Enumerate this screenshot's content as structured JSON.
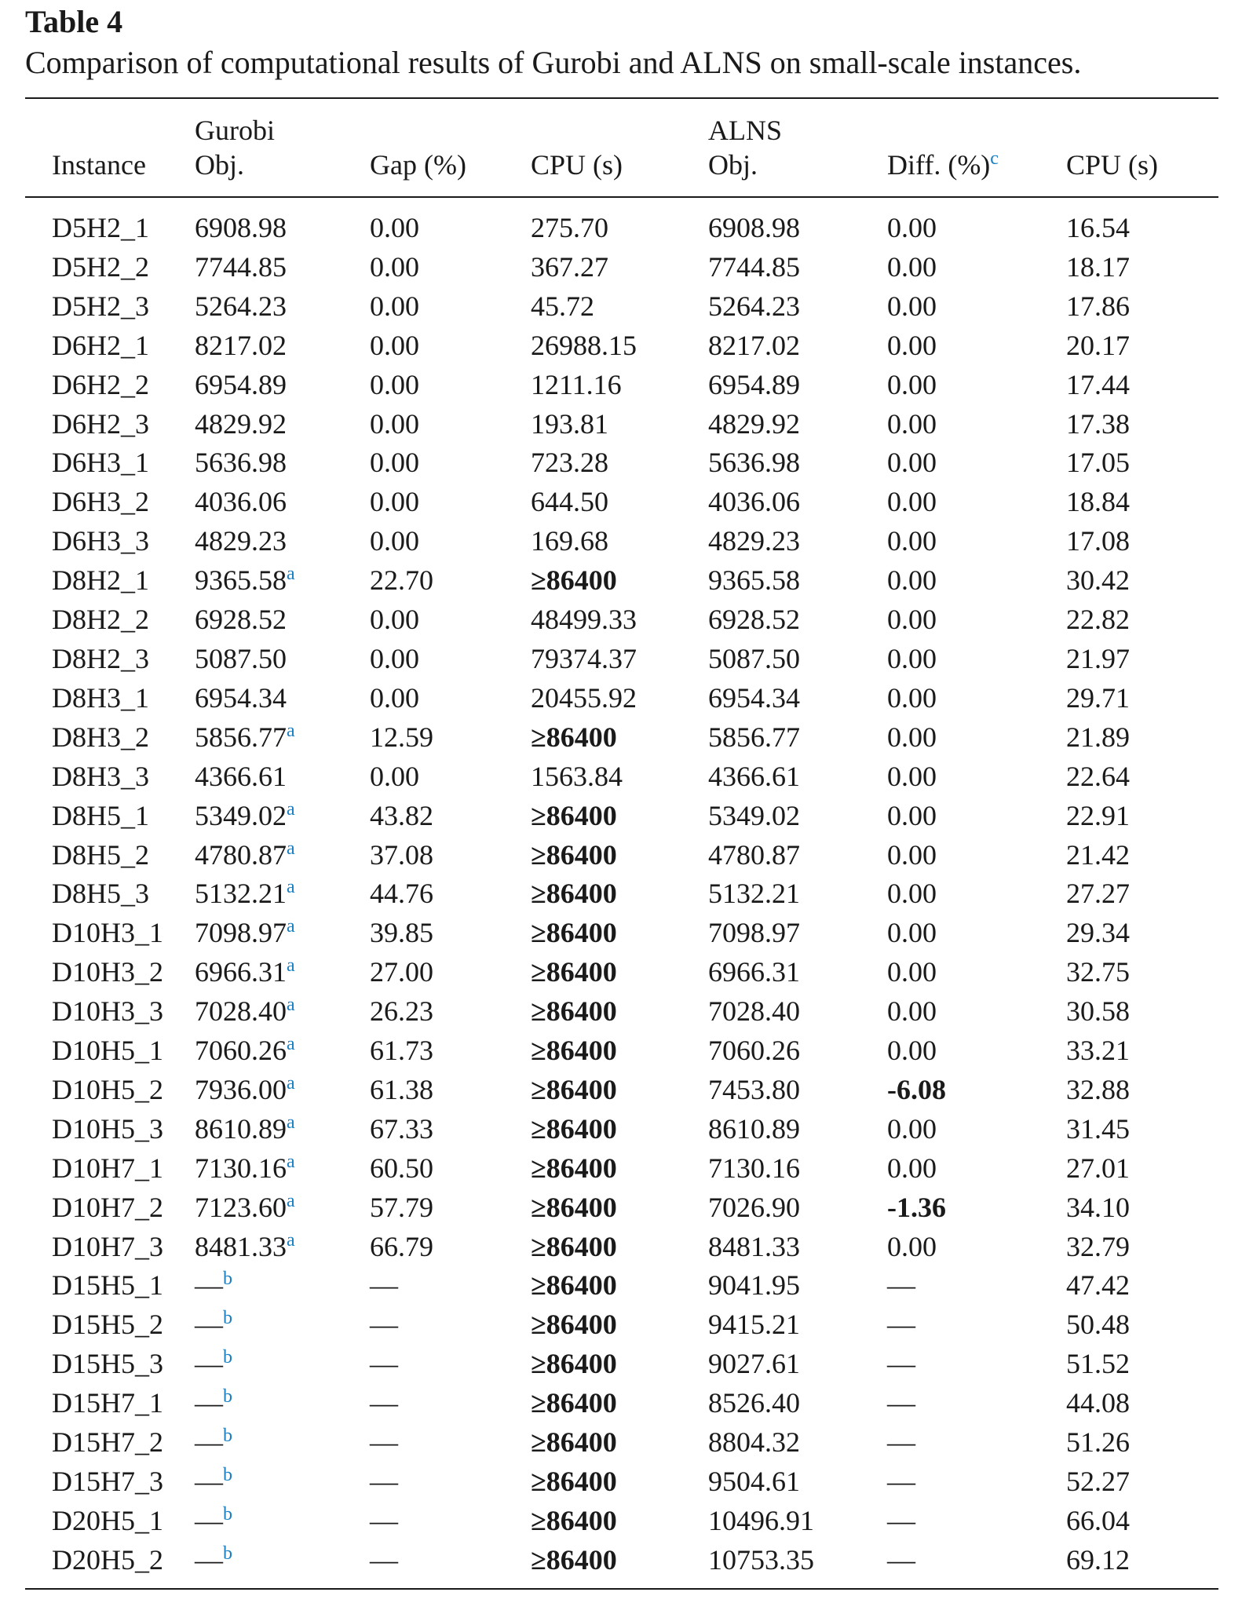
{
  "caption": {
    "label": "Table 4",
    "text": "Comparison of computational results of Gurobi and ALNS on small-scale instances."
  },
  "header": {
    "group_gurobi": "Gurobi",
    "group_alns": "ALNS",
    "col_instance": "Instance",
    "col_gurobi_obj": "Obj.",
    "col_gap": "Gap (%)",
    "col_gurobi_cpu": "CPU (s)",
    "col_alns_obj": "Obj.",
    "col_diff": "Diff. (%)",
    "col_diff_note": "c",
    "col_alns_cpu": "CPU (s)"
  },
  "rows": [
    {
      "instance": "D5H2_1",
      "gurobi_obj": "6908.98",
      "note": "",
      "gap": "0.00",
      "gurobi_cpu": "275.70",
      "cpu_bold": false,
      "alns_obj": "6908.98",
      "diff": "0.00",
      "diff_bold": false,
      "alns_cpu": "16.54"
    },
    {
      "instance": "D5H2_2",
      "gurobi_obj": "7744.85",
      "note": "",
      "gap": "0.00",
      "gurobi_cpu": "367.27",
      "cpu_bold": false,
      "alns_obj": "7744.85",
      "diff": "0.00",
      "diff_bold": false,
      "alns_cpu": "18.17"
    },
    {
      "instance": "D5H2_3",
      "gurobi_obj": "5264.23",
      "note": "",
      "gap": "0.00",
      "gurobi_cpu": "45.72",
      "cpu_bold": false,
      "alns_obj": "5264.23",
      "diff": "0.00",
      "diff_bold": false,
      "alns_cpu": "17.86"
    },
    {
      "instance": "D6H2_1",
      "gurobi_obj": "8217.02",
      "note": "",
      "gap": "0.00",
      "gurobi_cpu": "26988.15",
      "cpu_bold": false,
      "alns_obj": "8217.02",
      "diff": "0.00",
      "diff_bold": false,
      "alns_cpu": "20.17"
    },
    {
      "instance": "D6H2_2",
      "gurobi_obj": "6954.89",
      "note": "",
      "gap": "0.00",
      "gurobi_cpu": "1211.16",
      "cpu_bold": false,
      "alns_obj": "6954.89",
      "diff": "0.00",
      "diff_bold": false,
      "alns_cpu": "17.44"
    },
    {
      "instance": "D6H2_3",
      "gurobi_obj": "4829.92",
      "note": "",
      "gap": "0.00",
      "gurobi_cpu": "193.81",
      "cpu_bold": false,
      "alns_obj": "4829.92",
      "diff": "0.00",
      "diff_bold": false,
      "alns_cpu": "17.38"
    },
    {
      "instance": "D6H3_1",
      "gurobi_obj": "5636.98",
      "note": "",
      "gap": "0.00",
      "gurobi_cpu": "723.28",
      "cpu_bold": false,
      "alns_obj": "5636.98",
      "diff": "0.00",
      "diff_bold": false,
      "alns_cpu": "17.05"
    },
    {
      "instance": "D6H3_2",
      "gurobi_obj": "4036.06",
      "note": "",
      "gap": "0.00",
      "gurobi_cpu": "644.50",
      "cpu_bold": false,
      "alns_obj": "4036.06",
      "diff": "0.00",
      "diff_bold": false,
      "alns_cpu": "18.84"
    },
    {
      "instance": "D6H3_3",
      "gurobi_obj": "4829.23",
      "note": "",
      "gap": "0.00",
      "gurobi_cpu": "169.68",
      "cpu_bold": false,
      "alns_obj": "4829.23",
      "diff": "0.00",
      "diff_bold": false,
      "alns_cpu": "17.08"
    },
    {
      "instance": "D8H2_1",
      "gurobi_obj": "9365.58",
      "note": "a",
      "gap": "22.70",
      "gurobi_cpu": "≥86400",
      "cpu_bold": true,
      "alns_obj": "9365.58",
      "diff": "0.00",
      "diff_bold": false,
      "alns_cpu": "30.42"
    },
    {
      "instance": "D8H2_2",
      "gurobi_obj": "6928.52",
      "note": "",
      "gap": "0.00",
      "gurobi_cpu": "48499.33",
      "cpu_bold": false,
      "alns_obj": "6928.52",
      "diff": "0.00",
      "diff_bold": false,
      "alns_cpu": "22.82"
    },
    {
      "instance": "D8H2_3",
      "gurobi_obj": "5087.50",
      "note": "",
      "gap": "0.00",
      "gurobi_cpu": "79374.37",
      "cpu_bold": false,
      "alns_obj": "5087.50",
      "diff": "0.00",
      "diff_bold": false,
      "alns_cpu": "21.97"
    },
    {
      "instance": "D8H3_1",
      "gurobi_obj": "6954.34",
      "note": "",
      "gap": "0.00",
      "gurobi_cpu": "20455.92",
      "cpu_bold": false,
      "alns_obj": "6954.34",
      "diff": "0.00",
      "diff_bold": false,
      "alns_cpu": "29.71"
    },
    {
      "instance": "D8H3_2",
      "gurobi_obj": "5856.77",
      "note": "a",
      "gap": "12.59",
      "gurobi_cpu": "≥86400",
      "cpu_bold": true,
      "alns_obj": "5856.77",
      "diff": "0.00",
      "diff_bold": false,
      "alns_cpu": "21.89"
    },
    {
      "instance": "D8H3_3",
      "gurobi_obj": "4366.61",
      "note": "",
      "gap": "0.00",
      "gurobi_cpu": "1563.84",
      "cpu_bold": false,
      "alns_obj": "4366.61",
      "diff": "0.00",
      "diff_bold": false,
      "alns_cpu": "22.64"
    },
    {
      "instance": "D8H5_1",
      "gurobi_obj": "5349.02",
      "note": "a",
      "gap": "43.82",
      "gurobi_cpu": "≥86400",
      "cpu_bold": true,
      "alns_obj": "5349.02",
      "diff": "0.00",
      "diff_bold": false,
      "alns_cpu": "22.91"
    },
    {
      "instance": "D8H5_2",
      "gurobi_obj": "4780.87",
      "note": "a",
      "gap": "37.08",
      "gurobi_cpu": "≥86400",
      "cpu_bold": true,
      "alns_obj": "4780.87",
      "diff": "0.00",
      "diff_bold": false,
      "alns_cpu": "21.42"
    },
    {
      "instance": "D8H5_3",
      "gurobi_obj": "5132.21",
      "note": "a",
      "gap": "44.76",
      "gurobi_cpu": "≥86400",
      "cpu_bold": true,
      "alns_obj": "5132.21",
      "diff": "0.00",
      "diff_bold": false,
      "alns_cpu": "27.27"
    },
    {
      "instance": "D10H3_1",
      "gurobi_obj": "7098.97",
      "note": "a",
      "gap": "39.85",
      "gurobi_cpu": "≥86400",
      "cpu_bold": true,
      "alns_obj": "7098.97",
      "diff": "0.00",
      "diff_bold": false,
      "alns_cpu": "29.34"
    },
    {
      "instance": "D10H3_2",
      "gurobi_obj": "6966.31",
      "note": "a",
      "gap": "27.00",
      "gurobi_cpu": "≥86400",
      "cpu_bold": true,
      "alns_obj": "6966.31",
      "diff": "0.00",
      "diff_bold": false,
      "alns_cpu": "32.75"
    },
    {
      "instance": "D10H3_3",
      "gurobi_obj": "7028.40",
      "note": "a",
      "gap": "26.23",
      "gurobi_cpu": "≥86400",
      "cpu_bold": true,
      "alns_obj": "7028.40",
      "diff": "0.00",
      "diff_bold": false,
      "alns_cpu": "30.58"
    },
    {
      "instance": "D10H5_1",
      "gurobi_obj": "7060.26",
      "note": "a",
      "gap": "61.73",
      "gurobi_cpu": "≥86400",
      "cpu_bold": true,
      "alns_obj": "7060.26",
      "diff": "0.00",
      "diff_bold": false,
      "alns_cpu": "33.21"
    },
    {
      "instance": "D10H5_2",
      "gurobi_obj": "7936.00",
      "note": "a",
      "gap": "61.38",
      "gurobi_cpu": "≥86400",
      "cpu_bold": true,
      "alns_obj": "7453.80",
      "diff": "-6.08",
      "diff_bold": true,
      "alns_cpu": "32.88"
    },
    {
      "instance": "D10H5_3",
      "gurobi_obj": "8610.89",
      "note": "a",
      "gap": "67.33",
      "gurobi_cpu": "≥86400",
      "cpu_bold": true,
      "alns_obj": "8610.89",
      "diff": "0.00",
      "diff_bold": false,
      "alns_cpu": "31.45"
    },
    {
      "instance": "D10H7_1",
      "gurobi_obj": "7130.16",
      "note": "a",
      "gap": "60.50",
      "gurobi_cpu": "≥86400",
      "cpu_bold": true,
      "alns_obj": "7130.16",
      "diff": "0.00",
      "diff_bold": false,
      "alns_cpu": "27.01"
    },
    {
      "instance": "D10H7_2",
      "gurobi_obj": "7123.60",
      "note": "a",
      "gap": "57.79",
      "gurobi_cpu": "≥86400",
      "cpu_bold": true,
      "alns_obj": "7026.90",
      "diff": "-1.36",
      "diff_bold": true,
      "alns_cpu": "34.10"
    },
    {
      "instance": "D10H7_3",
      "gurobi_obj": "8481.33",
      "note": "a",
      "gap": "66.79",
      "gurobi_cpu": "≥86400",
      "cpu_bold": true,
      "alns_obj": "8481.33",
      "diff": "0.00",
      "diff_bold": false,
      "alns_cpu": "32.79"
    },
    {
      "instance": "D15H5_1",
      "gurobi_obj": "—",
      "note": "b",
      "gap": "—",
      "gurobi_cpu": "≥86400",
      "cpu_bold": true,
      "alns_obj": "9041.95",
      "diff": "—",
      "diff_bold": false,
      "alns_cpu": "47.42"
    },
    {
      "instance": "D15H5_2",
      "gurobi_obj": "—",
      "note": "b",
      "gap": "—",
      "gurobi_cpu": "≥86400",
      "cpu_bold": true,
      "alns_obj": "9415.21",
      "diff": "—",
      "diff_bold": false,
      "alns_cpu": "50.48"
    },
    {
      "instance": "D15H5_3",
      "gurobi_obj": "—",
      "note": "b",
      "gap": "—",
      "gurobi_cpu": "≥86400",
      "cpu_bold": true,
      "alns_obj": "9027.61",
      "diff": "—",
      "diff_bold": false,
      "alns_cpu": "51.52"
    },
    {
      "instance": "D15H7_1",
      "gurobi_obj": "—",
      "note": "b",
      "gap": "—",
      "gurobi_cpu": "≥86400",
      "cpu_bold": true,
      "alns_obj": "8526.40",
      "diff": "—",
      "diff_bold": false,
      "alns_cpu": "44.08"
    },
    {
      "instance": "D15H7_2",
      "gurobi_obj": "—",
      "note": "b",
      "gap": "—",
      "gurobi_cpu": "≥86400",
      "cpu_bold": true,
      "alns_obj": "8804.32",
      "diff": "—",
      "diff_bold": false,
      "alns_cpu": "51.26"
    },
    {
      "instance": "D15H7_3",
      "gurobi_obj": "—",
      "note": "b",
      "gap": "—",
      "gurobi_cpu": "≥86400",
      "cpu_bold": true,
      "alns_obj": "9504.61",
      "diff": "—",
      "diff_bold": false,
      "alns_cpu": "52.27"
    },
    {
      "instance": "D20H5_1",
      "gurobi_obj": "—",
      "note": "b",
      "gap": "—",
      "gurobi_cpu": "≥86400",
      "cpu_bold": true,
      "alns_obj": "10496.91",
      "diff": "—",
      "diff_bold": false,
      "alns_cpu": "66.04"
    },
    {
      "instance": "D20H5_2",
      "gurobi_obj": "—",
      "note": "b",
      "gap": "—",
      "gurobi_cpu": "≥86400",
      "cpu_bold": true,
      "alns_obj": "10753.35",
      "diff": "—",
      "diff_bold": false,
      "alns_cpu": "69.12"
    }
  ],
  "style": {
    "text_color": "#1a1a1a",
    "footnote_color": "#1a7fc1"
  }
}
